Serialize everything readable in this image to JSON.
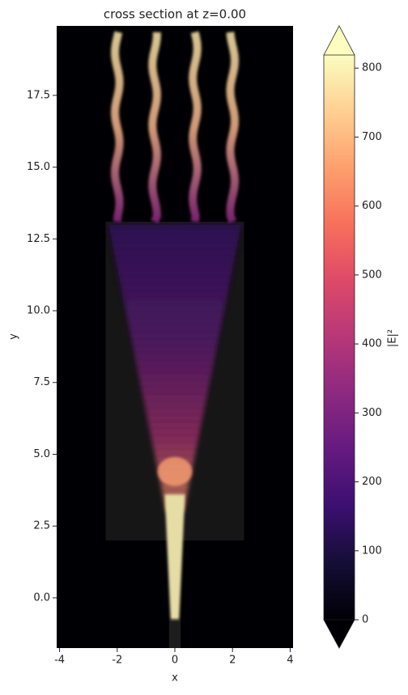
{
  "chart_data": {
    "type": "heatmap",
    "title": "cross section at z=0.00",
    "x_label": "x",
    "y_label": "y",
    "xlim": [
      -4.1,
      4.1
    ],
    "xticks": [
      -4,
      -2,
      0,
      2,
      4
    ],
    "ylim": [
      -1.75,
      19.92
    ],
    "yticks": [
      {
        "value": 0,
        "label": "0.0"
      },
      {
        "value": 2.5,
        "label": "2.5"
      },
      {
        "value": 5,
        "label": "5.0"
      },
      {
        "value": 7.5,
        "label": "7.5"
      },
      {
        "value": 10,
        "label": "10.0"
      },
      {
        "value": 12.5,
        "label": "12.5"
      },
      {
        "value": 15,
        "label": "15.0"
      },
      {
        "value": 17.5,
        "label": "17.5"
      }
    ],
    "colormap": "magma",
    "colorbar_label": "|E|²",
    "clim": [
      0,
      819
    ],
    "cticks": [
      0,
      100,
      200,
      300,
      400,
      500,
      600,
      700,
      800
    ]
  }
}
